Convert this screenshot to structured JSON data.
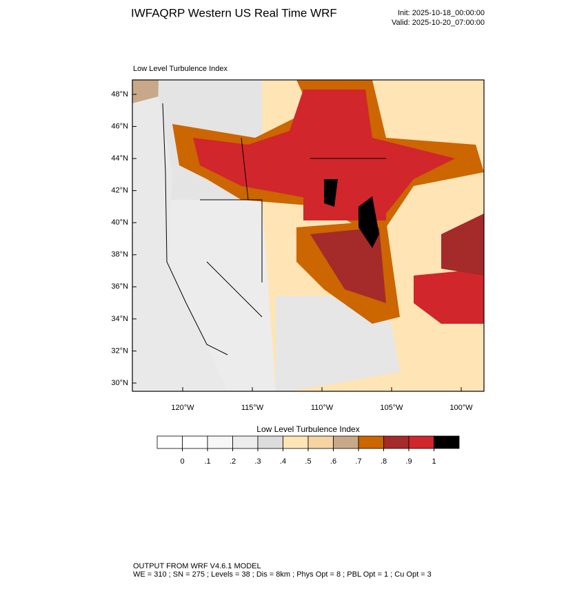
{
  "header": {
    "title": "IWFAQRP Western US Real Time WRF",
    "init": "Init: 2025-10-18_00:00:00",
    "valid": "Valid: 2025-10-20_07:00:00"
  },
  "map": {
    "subtitle": "Low Level Turbulence Index",
    "lat_ticks": [
      {
        "value": 30,
        "label": "30°N"
      },
      {
        "value": 32,
        "label": "32°N"
      },
      {
        "value": 34,
        "label": "34°N"
      },
      {
        "value": 36,
        "label": "36°N"
      },
      {
        "value": 38,
        "label": "38°N"
      },
      {
        "value": 40,
        "label": "40°N"
      },
      {
        "value": 42,
        "label": "42°N"
      },
      {
        "value": 44,
        "label": "44°N"
      },
      {
        "value": 46,
        "label": "46°N"
      },
      {
        "value": 48,
        "label": "48°N"
      }
    ],
    "lon_ticks": [
      {
        "value": -120,
        "label": "120°W"
      },
      {
        "value": -115,
        "label": "115°W"
      },
      {
        "value": -110,
        "label": "110°W"
      },
      {
        "value": -105,
        "label": "105°W"
      },
      {
        "value": -100,
        "label": "100°W"
      }
    ]
  },
  "colorbar": {
    "title": "Low Level Turbulence Index",
    "colors": [
      "#ffffff",
      "#f7f7f7",
      "#ededed",
      "#dcdcdc",
      "#ffe4b5",
      "#f5d3a3",
      "#c8a888",
      "#cc6600",
      "#a52a2a",
      "#d1262b",
      "#000000"
    ],
    "ticks": [
      0,
      {
        "value": 0.1,
        "label": ".1"
      },
      {
        "value": 0.2,
        "label": ".2"
      },
      {
        "value": 0.3,
        "label": ".3"
      },
      {
        "value": 0.4,
        "label": ".4"
      },
      {
        "value": 0.5,
        "label": ".5"
      },
      {
        "value": 0.6,
        "label": ".6"
      },
      {
        "value": 0.7,
        "label": ".7"
      },
      {
        "value": 0.8,
        "label": ".8"
      },
      {
        "value": 0.9,
        "label": ".9"
      },
      1
    ]
  },
  "footer": {
    "line1": "OUTPUT FROM WRF V4.6.1 MODEL",
    "line2": "WE = 310 ; SN = 275 ; Levels = 38 ; Dis = 8km ; Phys Opt = 8 ; PBL Opt = 1 ; Cu Opt = 3"
  }
}
